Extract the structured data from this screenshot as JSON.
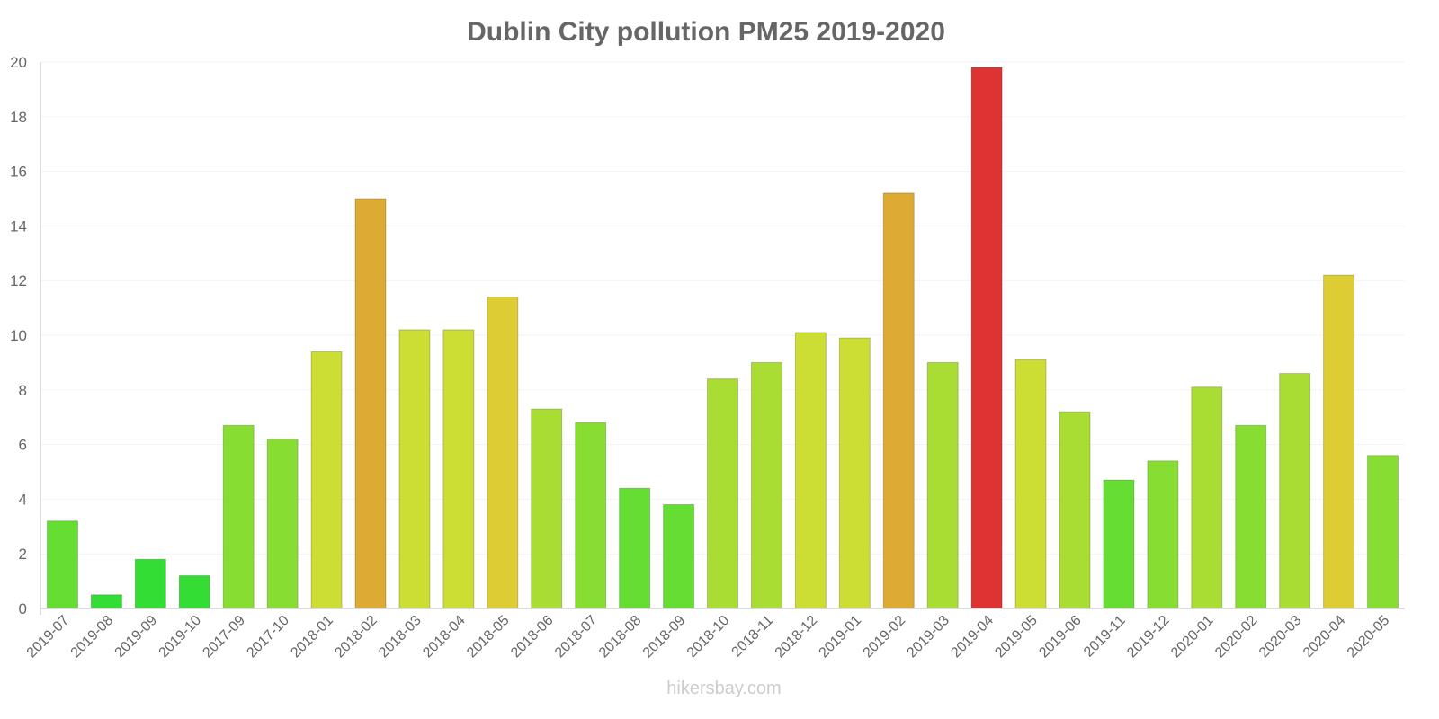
{
  "chart_data": {
    "type": "bar",
    "title": "Dublin City pollution PM25 2019-2020",
    "xlabel": "",
    "ylabel": "",
    "ylim": [
      0,
      20
    ],
    "yticks": [
      0,
      2,
      4,
      6,
      8,
      10,
      12,
      14,
      16,
      18,
      20
    ],
    "grid": true,
    "categories": [
      "2019-07",
      "2019-08",
      "2019-09",
      "2019-10",
      "2017-09",
      "2017-10",
      "2018-01",
      "2018-02",
      "2018-03",
      "2018-04",
      "2018-05",
      "2018-06",
      "2018-07",
      "2018-08",
      "2018-09",
      "2018-10",
      "2018-11",
      "2018-12",
      "2019-01",
      "2019-02",
      "2019-03",
      "2019-04",
      "2019-05",
      "2019-06",
      "2019-11",
      "2019-12",
      "2020-01",
      "2020-02",
      "2020-03",
      "2020-04",
      "2020-05"
    ],
    "values": [
      3.2,
      0.5,
      1.8,
      1.2,
      6.7,
      6.2,
      9.4,
      15.0,
      10.2,
      10.2,
      11.4,
      7.3,
      6.8,
      4.4,
      3.8,
      8.4,
      9.0,
      10.1,
      9.9,
      15.2,
      9.0,
      19.8,
      9.1,
      7.2,
      4.7,
      5.4,
      8.1,
      6.7,
      8.6,
      12.2,
      5.6
    ],
    "colors": [
      "#66dd33",
      "#33dd33",
      "#33dd33",
      "#33dd33",
      "#88dd33",
      "#88dd33",
      "#ccdd33",
      "#ddaa33",
      "#ccdd33",
      "#ccdd33",
      "#ddcc33",
      "#aadd33",
      "#88dd33",
      "#66dd33",
      "#66dd33",
      "#aadd33",
      "#aadd33",
      "#ccdd33",
      "#ccdd33",
      "#ddaa33",
      "#aadd33",
      "#dd3333",
      "#ccdd33",
      "#aadd33",
      "#66dd33",
      "#88dd33",
      "#aadd33",
      "#88dd33",
      "#aadd33",
      "#ddcc33",
      "#88dd33"
    ]
  },
  "watermark": "hikersbay.com"
}
